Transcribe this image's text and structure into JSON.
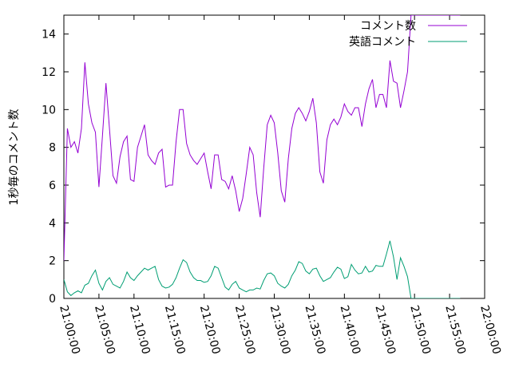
{
  "chart_data": {
    "type": "line",
    "title": "",
    "xlabel": "",
    "ylabel": "1秒毎のコメント数",
    "ylim": [
      0,
      15
    ],
    "y_ticks": [
      0,
      2,
      4,
      6,
      8,
      10,
      12,
      14
    ],
    "x_tick_labels": [
      "21:00:00",
      "21:05:00",
      "21:10:00",
      "21:15:00",
      "21:20:00",
      "21:25:00",
      "21:30:00",
      "21:35:00",
      "21:40:00",
      "21:45:00",
      "21:50:00",
      "21:55:00",
      "22:00:00"
    ],
    "xlim_minutes": [
      0,
      60
    ],
    "grid": false,
    "legend_position": "top-right",
    "x_minutes": [
      0.0,
      0.5,
      1.0,
      1.5,
      2.0,
      2.5,
      3.0,
      3.5,
      4.0,
      4.5,
      5.0,
      5.5,
      6.0,
      6.5,
      7.0,
      7.5,
      8.0,
      8.5,
      9.0,
      9.5,
      10.0,
      10.5,
      11.0,
      11.5,
      12.0,
      12.5,
      13.0,
      13.5,
      14.0,
      14.5,
      15.0,
      15.5,
      16.0,
      16.5,
      17.0,
      17.5,
      18.0,
      18.5,
      19.0,
      19.5,
      20.0,
      20.5,
      21.0,
      21.5,
      22.0,
      22.5,
      23.0,
      23.5,
      24.0,
      24.5,
      25.0,
      25.5,
      26.0,
      26.5,
      27.0,
      27.5,
      28.0,
      28.5,
      29.0,
      29.5,
      30.0,
      30.5,
      31.0,
      31.5,
      32.0,
      32.5,
      33.0,
      33.5,
      34.0,
      34.5,
      35.0,
      35.5,
      36.0,
      36.5,
      37.0,
      37.5,
      38.0,
      38.5,
      39.0,
      39.5,
      40.0,
      40.5,
      41.0,
      41.5,
      42.0,
      42.5,
      43.0,
      43.5,
      44.0,
      44.5,
      45.0,
      45.5,
      46.0,
      46.5,
      47.0,
      47.5,
      48.0,
      48.5,
      49.0,
      49.5,
      50.0,
      50.5,
      51.0,
      51.5,
      52.0,
      52.5,
      53.0,
      53.5,
      54.0,
      54.5,
      55.0,
      55.5,
      56.0,
      56.5
    ],
    "series": [
      {
        "name": "コメント数",
        "color": "#9400d3",
        "values": [
          2.0,
          9.0,
          8.0,
          8.3,
          7.7,
          9.0,
          12.5,
          10.3,
          9.3,
          8.8,
          5.9,
          8.6,
          11.4,
          9.0,
          6.5,
          6.1,
          7.5,
          8.3,
          8.6,
          6.3,
          6.2,
          8.0,
          8.6,
          9.2,
          7.6,
          7.3,
          7.1,
          7.7,
          7.9,
          5.9,
          6.0,
          6.0,
          8.3,
          10.0,
          10.0,
          8.2,
          7.6,
          7.3,
          7.1,
          7.4,
          7.7,
          6.7,
          5.8,
          7.6,
          7.6,
          6.3,
          6.2,
          5.8,
          6.5,
          5.7,
          4.6,
          5.3,
          6.6,
          8.0,
          7.6,
          5.6,
          4.3,
          6.9,
          9.2,
          9.7,
          9.3,
          7.7,
          5.7,
          5.1,
          7.4,
          9.0,
          9.8,
          10.1,
          9.8,
          9.4,
          9.9,
          10.6,
          9.3,
          6.7,
          6.1,
          8.4,
          9.2,
          9.5,
          9.2,
          9.6,
          10.3,
          9.9,
          9.7,
          10.1,
          10.1,
          9.1,
          10.3,
          11.1,
          11.6,
          10.1,
          10.8,
          10.8,
          10.1,
          12.6,
          11.5,
          11.4,
          10.1,
          11.0,
          12.0,
          15.0,
          15.0,
          15.0,
          15.0,
          15.0,
          15.0,
          15.0,
          15.0,
          15.0,
          15.0,
          15.0,
          15.0,
          15.0,
          15.0,
          15.0
        ]
      },
      {
        "name": "英語コメント",
        "color": "#009e73",
        "values": [
          1.0,
          0.35,
          0.15,
          0.3,
          0.4,
          0.3,
          0.7,
          0.8,
          1.2,
          1.5,
          0.8,
          0.45,
          0.9,
          1.1,
          0.75,
          0.65,
          0.55,
          0.9,
          1.4,
          1.1,
          0.95,
          1.2,
          1.4,
          1.6,
          1.5,
          1.6,
          1.7,
          1.0,
          0.65,
          0.55,
          0.6,
          0.75,
          1.1,
          1.6,
          2.05,
          1.9,
          1.4,
          1.1,
          0.95,
          0.95,
          0.85,
          0.9,
          1.2,
          1.7,
          1.6,
          1.1,
          0.6,
          0.45,
          0.75,
          0.9,
          0.55,
          0.45,
          0.35,
          0.45,
          0.45,
          0.55,
          0.5,
          0.95,
          1.3,
          1.35,
          1.2,
          0.8,
          0.65,
          0.55,
          0.75,
          1.2,
          1.5,
          1.95,
          1.85,
          1.45,
          1.3,
          1.55,
          1.6,
          1.2,
          0.9,
          1.0,
          1.1,
          1.4,
          1.65,
          1.55,
          1.05,
          1.15,
          1.8,
          1.5,
          1.3,
          1.35,
          1.7,
          1.4,
          1.45,
          1.75,
          1.7,
          1.7,
          2.35,
          3.05,
          2.2,
          1.0,
          2.15,
          1.7,
          1.15,
          0.0,
          0.0,
          0.0,
          0.0,
          0.0,
          0.0,
          0.0,
          0.0,
          0.0,
          0.0,
          0.0,
          0.0,
          0.0,
          0.0,
          0.0
        ]
      }
    ]
  }
}
